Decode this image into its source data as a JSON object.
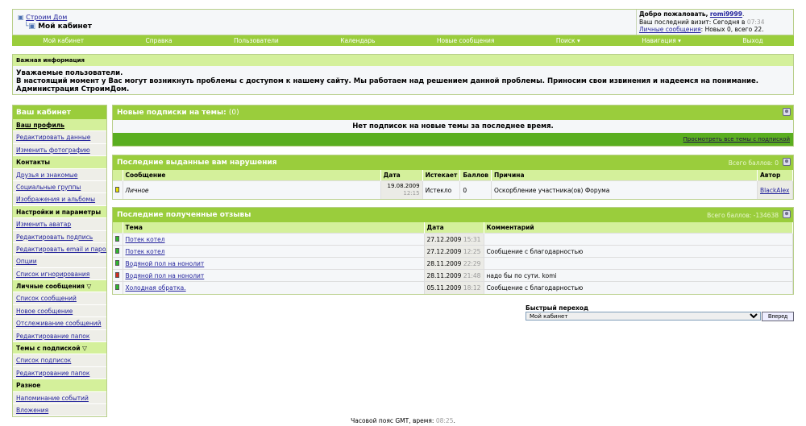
{
  "header": {
    "site_link": "Строим Дом",
    "current": "Мой кабинет",
    "welcome": "Добро пожаловать,",
    "username": "romi9999",
    "last_visit_label": "Ваш последний визит: Сегодня в",
    "last_visit_time": "07:34",
    "pm_link": "Личные сообщения",
    "pm_status": ": Новых 0, всего 22."
  },
  "nav": [
    "Мой кабинет",
    "Справка",
    "Пользователи",
    "Календарь",
    "Новые сообщения",
    "Поиск ▾",
    "Навигация ▾",
    "Выход"
  ],
  "notice": {
    "title": "Важная информация",
    "line1": "Уважаемые пользователи.",
    "line2": "В настоящий момент у Вас могут возникнуть проблемы с доступом к нашему сайту. Мы работаем над решением данной проблемы. Приносим свои извинения и надеемся на понимание. Администрация СтроимДом."
  },
  "sidebar": {
    "title": "Ваш кабинет",
    "items": [
      {
        "label": "Ваш профиль",
        "type": "active"
      },
      {
        "label": "Редактировать данные",
        "type": "link"
      },
      {
        "label": "Изменить фотографию",
        "type": "link"
      },
      {
        "label": "Контакты",
        "type": "section"
      },
      {
        "label": "Друзья и знакомые",
        "type": "link"
      },
      {
        "label": "Социальные группы",
        "type": "link"
      },
      {
        "label": "Изображения и альбомы",
        "type": "link"
      },
      {
        "label": "Настройки и параметры",
        "type": "section"
      },
      {
        "label": "Изменить аватар",
        "type": "link"
      },
      {
        "label": "Редактировать подпись",
        "type": "link"
      },
      {
        "label": "Редактировать email и пароль",
        "type": "link"
      },
      {
        "label": "Опции",
        "type": "link"
      },
      {
        "label": "Список игнорирования",
        "type": "link"
      },
      {
        "label": "Личные сообщения ▽",
        "type": "section"
      },
      {
        "label": "Список сообщений",
        "type": "link"
      },
      {
        "label": "Новое сообщение",
        "type": "link"
      },
      {
        "label": "Отслеживание сообщений",
        "type": "link"
      },
      {
        "label": "Редактирование папок",
        "type": "link"
      },
      {
        "label": "Темы с подпиской ▽",
        "type": "section"
      },
      {
        "label": "Список подписок",
        "type": "link"
      },
      {
        "label": "Редактирование папок",
        "type": "link"
      },
      {
        "label": "Разное",
        "type": "section"
      },
      {
        "label": "Напоминание событий",
        "type": "link"
      },
      {
        "label": "Вложения",
        "type": "link"
      }
    ]
  },
  "subscriptions": {
    "title": "Новые подписки на темы:",
    "count": "(0)",
    "empty": "Нет подписок на новые темы за последнее время.",
    "view_all": "Просмотреть все темы с подпиской"
  },
  "infractions": {
    "title": "Последние выданные вам нарушения",
    "total": "Всего баллов: 0",
    "columns": [
      "Сообщение",
      "Дата",
      "Истекает",
      "Баллов",
      "Причина",
      "Автор"
    ],
    "rows": [
      {
        "message": "Личное",
        "date": "19.08.2009",
        "time": "12:15",
        "expires": "Истекло",
        "points": "0",
        "reason": "Оскорбление участника(ов) Форума",
        "author": "BlackAlex",
        "status_color": "#e8e000"
      }
    ]
  },
  "reputation": {
    "title": "Последние полученные отзывы",
    "total": "Всего баллов: -134638",
    "columns": [
      "Тема",
      "Дата",
      "Комментарий"
    ],
    "rows": [
      {
        "topic": "Потек котел",
        "date": "27.12.2009",
        "time": "15:31",
        "comment": "",
        "color": "#2fb52f"
      },
      {
        "topic": "Потек котел",
        "date": "27.12.2009",
        "time": "12:25",
        "comment": "Сообщение с благодарностью",
        "color": "#2fb52f"
      },
      {
        "topic": "Водяной пол на нонолит",
        "date": "28.11.2009",
        "time": "22:29",
        "comment": "",
        "color": "#2fb52f"
      },
      {
        "topic": "Водяной пол на нонолит",
        "date": "28.11.2009",
        "time": "21:48",
        "comment": "надо бы по сути. komi",
        "color": "#d03020"
      },
      {
        "topic": "Холодная обратка.",
        "date": "05.11.2009",
        "time": "18:12",
        "comment": "Сообщение с благодарностью",
        "color": "#2fb52f"
      }
    ]
  },
  "quicknav": {
    "label": "Быстрый переход",
    "selected": "Мой кабинет",
    "button": "Вперед"
  },
  "footer": {
    "text": "Часовой пояс GMT, время:",
    "time": "08:25"
  }
}
